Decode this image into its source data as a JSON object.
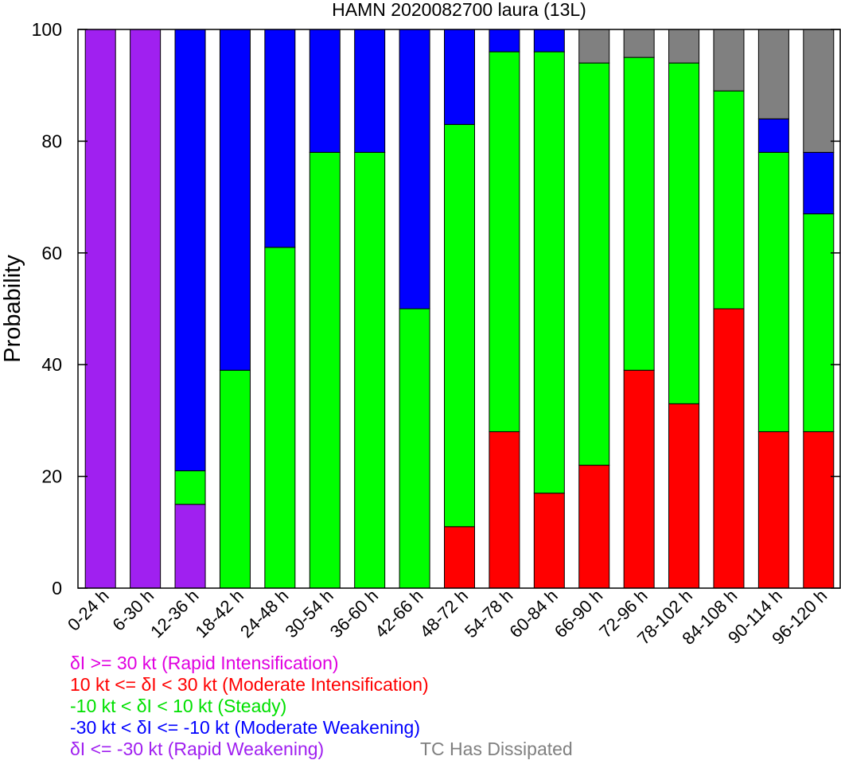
{
  "chart_data": {
    "type": "bar",
    "stacked": true,
    "title": "HAMN 2020082700 laura (13L)",
    "xlabel": "",
    "ylabel": "Probability",
    "ylim": [
      0,
      100
    ],
    "yticks": [
      "0",
      "20",
      "40",
      "60",
      "80",
      "100"
    ],
    "grid": false,
    "categories": [
      "0-24 h",
      "6-30 h",
      "12-36 h",
      "18-42 h",
      "24-48 h",
      "30-54 h",
      "36-60 h",
      "42-66 h",
      "48-72 h",
      "54-78 h",
      "60-84 h",
      "66-90 h",
      "72-96 h",
      "78-102 h",
      "84-108 h",
      "90-114 h",
      "96-120 h"
    ],
    "series": [
      {
        "key": "rw",
        "color": "#a020f0",
        "values": [
          100,
          100,
          15,
          0,
          0,
          0,
          0,
          0,
          0,
          0,
          0,
          0,
          0,
          0,
          0,
          0,
          0
        ]
      },
      {
        "key": "mi",
        "color": "#ff0000",
        "values": [
          0,
          0,
          0,
          0,
          0,
          0,
          0,
          0,
          11,
          28,
          17,
          22,
          39,
          33,
          50,
          28,
          28
        ]
      },
      {
        "key": "st",
        "color": "#00ff00",
        "values": [
          0,
          0,
          6,
          39,
          61,
          78,
          78,
          50,
          72,
          68,
          79,
          72,
          56,
          61,
          39,
          50,
          39
        ]
      },
      {
        "key": "mw",
        "color": "#0000ff",
        "values": [
          0,
          0,
          79,
          61,
          39,
          22,
          22,
          50,
          17,
          4,
          4,
          0,
          0,
          0,
          0,
          6,
          11
        ]
      },
      {
        "key": "dis",
        "color": "#808080",
        "values": [
          0,
          0,
          0,
          0,
          0,
          0,
          0,
          0,
          0,
          0,
          0,
          6,
          5,
          6,
          11,
          16,
          22
        ]
      }
    ]
  },
  "legend": {
    "ri": {
      "text": "δI >= 30 kt (Rapid Intensification)",
      "color": "#e000e0"
    },
    "mi": {
      "text": "10 kt <= δI < 30 kt (Moderate Intensification)",
      "color": "#ff0000"
    },
    "st": {
      "text": "-10 kt < δI < 10 kt (Steady)",
      "color": "#00e000"
    },
    "mw": {
      "text": "-30 kt < δI <= -10 kt (Moderate Weakening)",
      "color": "#0000ff"
    },
    "rw": {
      "text": "δI <= -30 kt (Rapid Weakening)",
      "color": "#a020f0"
    },
    "dis": {
      "text": "TC Has Dissipated",
      "color": "#808080"
    }
  }
}
